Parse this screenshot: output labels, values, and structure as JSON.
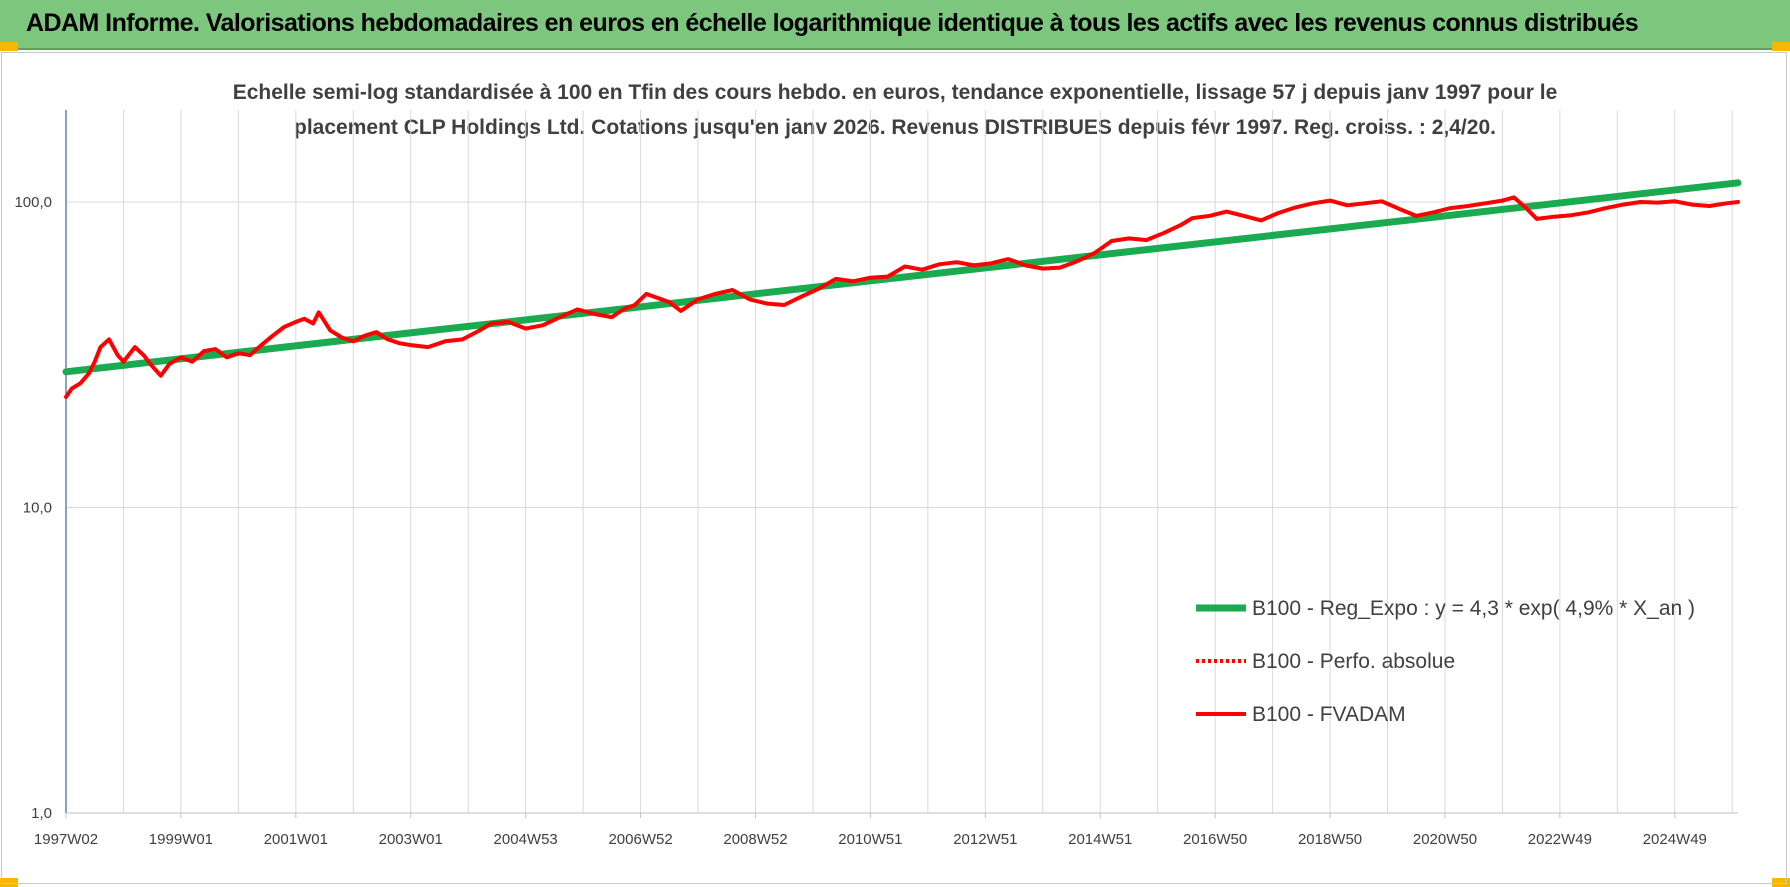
{
  "header": {
    "title": "ADAM Informe. Valorisations hebdomadaires en euros en échelle logarithmique identique à tous les actifs avec les revenus connus distribués"
  },
  "colors": {
    "header_bg": "#7dc67e",
    "corner": "#f5b800",
    "trend": "#1aaa50",
    "fvadam": "#ff0000",
    "grid": "#d9d9d9"
  },
  "chart_data": {
    "type": "line",
    "y_scale": "log",
    "title_lines": [
      "Echelle semi-log standardisée à 100 en Tfin des cours hebdo. en euros, tendance exponentielle, lissage 57 j depuis janv 1997 pour le",
      "placement CLP Holdings Ltd. Cotations jusqu'en janv 2026. Revenus DISTRIBUES depuis févr 1997. Reg. croiss. : 2,4/20."
    ],
    "ylim": [
      1,
      200
    ],
    "y_ticks": [
      {
        "value": 1,
        "label": "1,0"
      },
      {
        "value": 10,
        "label": "10,0"
      },
      {
        "value": 100,
        "label": "100,0"
      }
    ],
    "x_range": [
      1997.0,
      2026.1
    ],
    "x_ticks": [
      {
        "x": 1997.0,
        "label": "1997W02"
      },
      {
        "x": 1999.0,
        "label": "1999W01"
      },
      {
        "x": 2001.0,
        "label": "2001W01"
      },
      {
        "x": 2003.0,
        "label": "2003W01"
      },
      {
        "x": 2005.0,
        "label": "2004W53"
      },
      {
        "x": 2007.0,
        "label": "2006W52"
      },
      {
        "x": 2009.0,
        "label": "2008W52"
      },
      {
        "x": 2011.0,
        "label": "2010W51"
      },
      {
        "x": 2013.0,
        "label": "2012W51"
      },
      {
        "x": 2015.0,
        "label": "2014W51"
      },
      {
        "x": 2017.0,
        "label": "2016W50"
      },
      {
        "x": 2019.0,
        "label": "2018W50"
      },
      {
        "x": 2021.0,
        "label": "2020W50"
      },
      {
        "x": 2023.0,
        "label": "2022W49"
      },
      {
        "x": 2025.0,
        "label": "2024W49"
      }
    ],
    "series": [
      {
        "name": "B100 - Reg_Expo : y = 4,3 * exp( 4,9% *  X_an )",
        "style": "thick-green",
        "x": [
          1997.0,
          2026.1
        ],
        "y": [
          27.8,
          115.5
        ]
      },
      {
        "name": "B100 - Perfo. absolue",
        "style": "dotted-red",
        "x": [],
        "y": []
      },
      {
        "name": "B100 - FVADAM",
        "style": "thick-red",
        "x": [
          1997.0,
          1997.1,
          1997.25,
          1997.4,
          1997.5,
          1997.6,
          1997.75,
          1997.9,
          1998.0,
          1998.2,
          1998.35,
          1998.5,
          1998.65,
          1998.8,
          1999.0,
          1999.2,
          1999.4,
          1999.6,
          1999.8,
          2000.0,
          2000.2,
          2000.4,
          2000.6,
          2000.8,
          2001.0,
          2001.15,
          2001.3,
          2001.4,
          2001.6,
          2001.8,
          2002.0,
          2002.2,
          2002.4,
          2002.6,
          2002.8,
          2003.0,
          2003.3,
          2003.6,
          2003.9,
          2004.2,
          2004.4,
          2004.7,
          2005.0,
          2005.3,
          2005.6,
          2005.9,
          2006.2,
          2006.5,
          2006.7,
          2006.9,
          2007.1,
          2007.3,
          2007.5,
          2007.7,
          2008.0,
          2008.3,
          2008.6,
          2008.9,
          2009.2,
          2009.5,
          2009.8,
          2010.1,
          2010.4,
          2010.7,
          2011.0,
          2011.3,
          2011.6,
          2011.9,
          2012.2,
          2012.5,
          2012.8,
          2013.1,
          2013.4,
          2013.7,
          2014.0,
          2014.3,
          2014.6,
          2014.9,
          2015.2,
          2015.5,
          2015.8,
          2016.1,
          2016.4,
          2016.6,
          2016.9,
          2017.2,
          2017.5,
          2017.8,
          2018.1,
          2018.4,
          2018.7,
          2019.0,
          2019.3,
          2019.6,
          2019.9,
          2020.2,
          2020.5,
          2020.8,
          2021.1,
          2021.4,
          2021.7,
          2022.0,
          2022.2,
          2022.4,
          2022.6,
          2022.9,
          2023.2,
          2023.5,
          2023.8,
          2024.1,
          2024.4,
          2024.7,
          2025.0,
          2025.3,
          2025.6,
          2025.9,
          2026.1
        ],
        "y": [
          23.0,
          24.5,
          25.5,
          27.5,
          30.0,
          33.5,
          35.5,
          31.5,
          30.0,
          33.5,
          31.5,
          29.0,
          27.0,
          29.5,
          31.0,
          30.0,
          32.5,
          33.0,
          31.0,
          32.0,
          31.5,
          34.0,
          36.5,
          39.0,
          40.5,
          41.5,
          40.0,
          43.5,
          38.0,
          36.0,
          35.0,
          36.5,
          37.5,
          35.5,
          34.5,
          34.0,
          33.5,
          35.0,
          35.5,
          38.0,
          40.0,
          40.5,
          38.5,
          39.5,
          42.0,
          44.5,
          43.0,
          42.0,
          44.5,
          46.0,
          50.0,
          48.5,
          47.0,
          44.0,
          48.0,
          50.0,
          51.5,
          48.0,
          46.5,
          46.0,
          49.0,
          52.0,
          56.0,
          55.0,
          56.5,
          57.0,
          61.5,
          60.0,
          62.5,
          63.5,
          62.0,
          63.0,
          65.0,
          62.0,
          60.5,
          61.0,
          64.0,
          68.0,
          74.5,
          76.0,
          75.0,
          79.0,
          84.0,
          88.5,
          90.0,
          93.0,
          90.0,
          87.0,
          92.0,
          96.0,
          99.0,
          101.0,
          97.5,
          99.0,
          100.5,
          95.0,
          90.0,
          92.5,
          95.5,
          97.0,
          99.0,
          101.0,
          103.5,
          96.0,
          88.0,
          89.5,
          90.5,
          92.5,
          95.5,
          98.0,
          100.0,
          99.5,
          100.5,
          98.0,
          97.0,
          99.0,
          100.0
        ]
      }
    ],
    "legend": [
      {
        "label": "B100 - Reg_Expo : y = 4,3 * exp( 4,9% *  X_an )",
        "style": "thick-green"
      },
      {
        "label": "B100 - Perfo. absolue",
        "style": "dotted-red"
      },
      {
        "label": "B100 - FVADAM",
        "style": "thick-red"
      }
    ],
    "legend_position": "lower-right"
  }
}
